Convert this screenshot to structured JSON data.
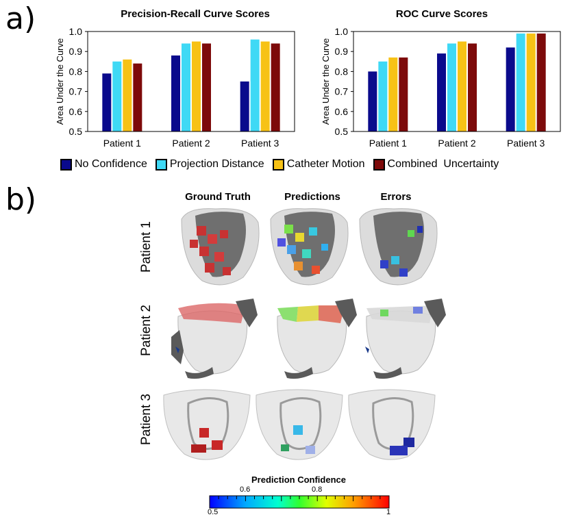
{
  "panel_labels": {
    "a": "a)",
    "b": "b)"
  },
  "chart_data": [
    {
      "type": "bar",
      "title": "Precision-Recall  Curve Scores",
      "xlabel": "",
      "ylabel": "Area Under the Curve",
      "ylim": [
        0.5,
        1.0
      ],
      "yticks": [
        "0.5",
        "0.6",
        "0.7",
        "0.8",
        "0.9",
        "1.0"
      ],
      "categories": [
        "Patient 1",
        "Patient 2",
        "Patient 3"
      ],
      "series": [
        {
          "name": "No Confidence",
          "values": [
            0.79,
            0.88,
            0.75
          ]
        },
        {
          "name": "Projection Distance",
          "values": [
            0.85,
            0.94,
            0.96
          ]
        },
        {
          "name": "Catheter Motion",
          "values": [
            0.86,
            0.95,
            0.95
          ]
        },
        {
          "name": "Combined  Uncertainty",
          "values": [
            0.84,
            0.94,
            0.94
          ]
        }
      ]
    },
    {
      "type": "bar",
      "title": "ROC Curve Scores",
      "xlabel": "",
      "ylabel": "Area Under the Curve",
      "ylim": [
        0.5,
        1.0
      ],
      "yticks": [
        "0.5",
        "0.6",
        "0.7",
        "0.8",
        "0.9",
        "1.0"
      ],
      "categories": [
        "Patient 1",
        "Patient 2",
        "Patient 3"
      ],
      "series": [
        {
          "name": "No Confidence",
          "values": [
            0.8,
            0.89,
            0.92
          ]
        },
        {
          "name": "Projection Distance",
          "values": [
            0.85,
            0.94,
            0.99
          ]
        },
        {
          "name": "Catheter Motion",
          "values": [
            0.87,
            0.95,
            0.99
          ]
        },
        {
          "name": "Combined  Uncertainty",
          "values": [
            0.87,
            0.94,
            0.99
          ]
        }
      ]
    }
  ],
  "series_colors": [
    "#0a0a8c",
    "#3fd9f5",
    "#f7c216",
    "#7d0a0a"
  ],
  "legend": [
    {
      "label": "No Confidence",
      "color": "#0a0a8c"
    },
    {
      "label": "Projection Distance",
      "color": "#3fd9f5"
    },
    {
      "label": "Catheter Motion",
      "color": "#f7c216"
    },
    {
      "label": "Combined  Uncertainty",
      "color": "#7d0a0a"
    }
  ],
  "grid": {
    "columns": [
      "Ground Truth",
      "Predictions",
      "Errors"
    ],
    "rows": [
      "Patient 1",
      "Patient 2",
      "Patient 3"
    ]
  },
  "colorbar": {
    "title": "Prediction Confidence",
    "tick_labels": [
      "0.6",
      "0.8"
    ],
    "min_label": "0.5",
    "max_label": "1",
    "range": [
      0.5,
      1.0
    ]
  }
}
